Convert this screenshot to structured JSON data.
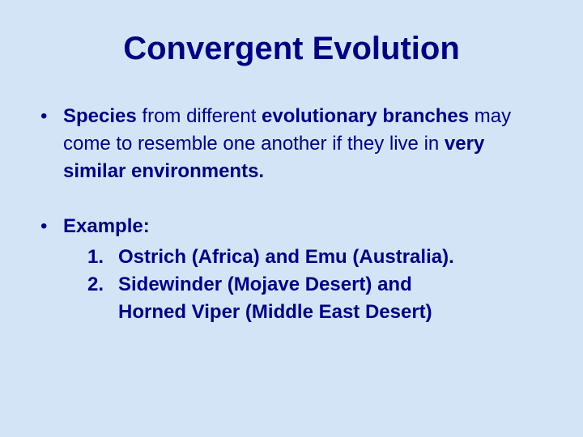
{
  "colors": {
    "background": "#d4e4f7",
    "text": "#000080"
  },
  "typography": {
    "title_fontsize": 40,
    "body_fontsize": 24,
    "line_height": 34
  },
  "title": "Convergent Evolution",
  "bullets": [
    {
      "dot": "•",
      "segments": {
        "s1_bold": "Species",
        "s2": " from different ",
        "s3_bold": "evolutionary branches",
        "s4": " may come to resemble one another if they live in ",
        "s5_bold": "very similar environments."
      }
    },
    {
      "dot": "•",
      "label_bold": "Example:",
      "items": [
        {
          "num": "1.",
          "text": "Ostrich (Africa) and Emu (Australia)."
        },
        {
          "num": "2.",
          "text_a": "Sidewinder (Mojave Desert) and",
          "text_b": "Horned Viper (Middle East Desert)"
        }
      ]
    }
  ]
}
